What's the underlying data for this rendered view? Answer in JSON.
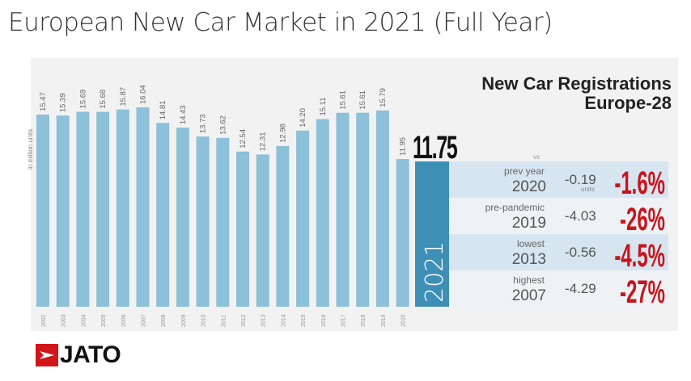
{
  "page_title": "European New Car Market in 2021 (Full Year)",
  "header": {
    "line1": "New Car Registrations",
    "line2": "Europe-28"
  },
  "logo": "JATO",
  "chart_data": {
    "type": "bar",
    "ylabel": "in million units",
    "categories": [
      "2002",
      "2003",
      "2004",
      "2005",
      "2006",
      "2007",
      "2008",
      "2009",
      "2010",
      "2011",
      "2012",
      "2013",
      "2014",
      "2015",
      "2016",
      "2017",
      "2018",
      "2019",
      "2020"
    ],
    "values": [
      15.47,
      15.39,
      15.69,
      15.68,
      15.87,
      16.04,
      14.81,
      14.43,
      13.73,
      13.62,
      12.54,
      12.31,
      12.98,
      14.2,
      15.11,
      15.61,
      15.61,
      15.79,
      11.95
    ],
    "value_labels": [
      "15.47",
      "15.39",
      "15.69",
      "15.68",
      "15.87",
      "16.04",
      "14.81",
      "14.43",
      "13.73",
      "13.62",
      "12.54",
      "12.31",
      "12.98",
      "14.20",
      "15.11",
      "15.61",
      "15.61",
      "15.79",
      "11.95"
    ],
    "highlight": {
      "year": "2021",
      "value": 11.75,
      "label": "11.75"
    },
    "colors": {
      "bar": "#8dc0d9",
      "highlight": "#3d8fb6",
      "negative": "#c8141c",
      "row_a": "#d6e5ef",
      "row_b": "#eef2f5"
    },
    "vs_label": "vs",
    "units_label": "units",
    "comparisons": [
      {
        "label": "prev year",
        "year": "2020",
        "diff": "-0.19",
        "pct": "-1.6%"
      },
      {
        "label": "pre-pandemic",
        "year": "2019",
        "diff": "-4.03",
        "pct": "-26%"
      },
      {
        "label": "lowest",
        "year": "2013",
        "diff": "-0.56",
        "pct": "-4.5%"
      },
      {
        "label": "highest",
        "year": "2007",
        "diff": "-4.29",
        "pct": "-27%"
      }
    ]
  }
}
